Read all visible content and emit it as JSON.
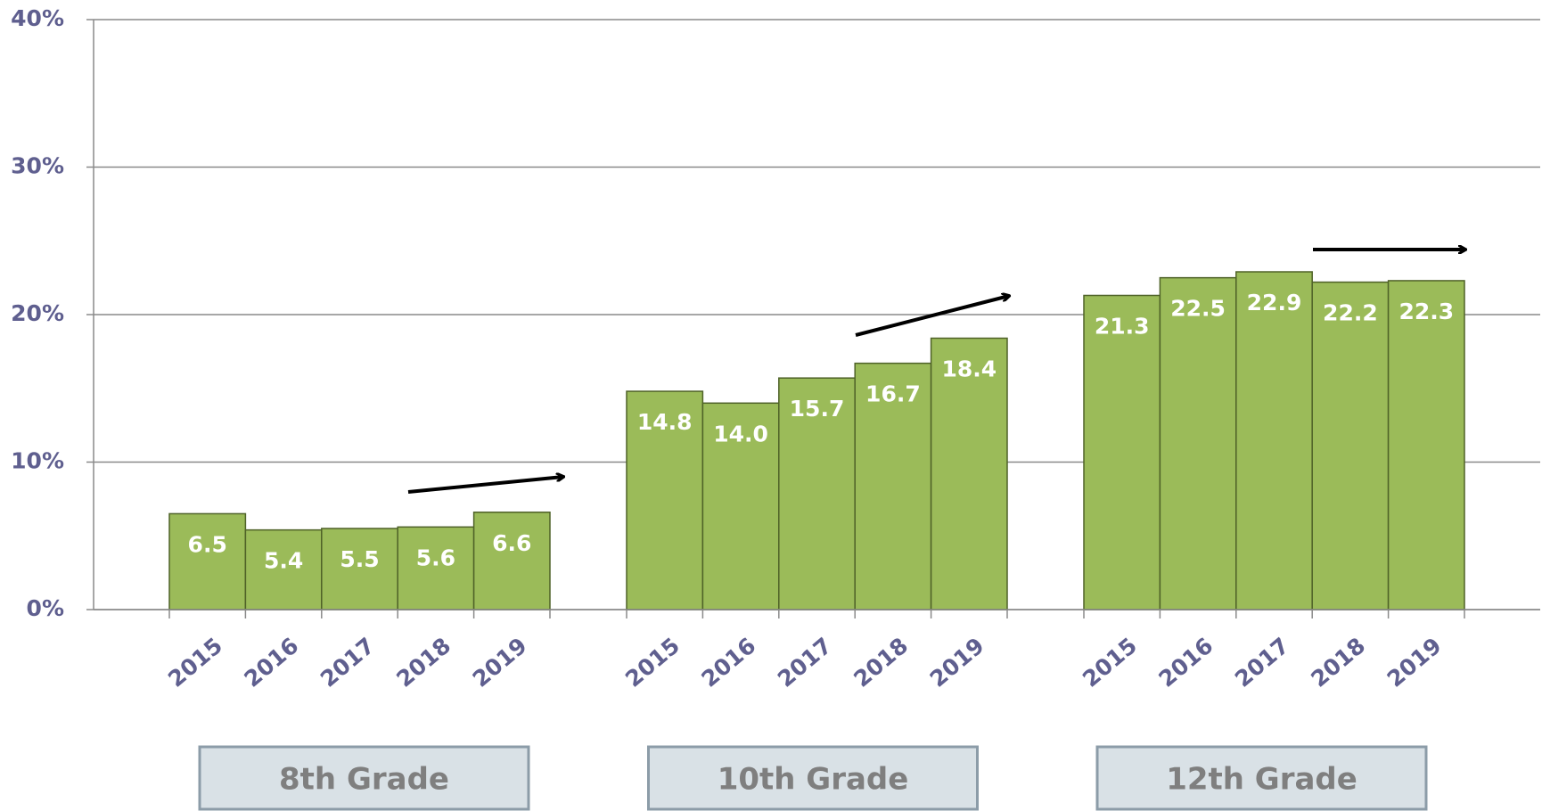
{
  "chart_data": {
    "type": "bar",
    "groups": [
      {
        "name": "8th Grade",
        "categories": [
          "2015",
          "2016",
          "2017",
          "2018",
          "2019"
        ],
        "values": [
          6.5,
          5.4,
          5.5,
          5.6,
          6.6
        ],
        "value_labels": [
          "6.5",
          "5.4",
          "5.5",
          "5.6",
          "6.6"
        ]
      },
      {
        "name": "10th Grade",
        "categories": [
          "2015",
          "2016",
          "2017",
          "2018",
          "2019"
        ],
        "values": [
          14.8,
          14.0,
          15.7,
          16.7,
          18.4
        ],
        "value_labels": [
          "14.8",
          "14.0",
          "15.7",
          "16.7",
          "18.4"
        ]
      },
      {
        "name": "12th Grade",
        "categories": [
          "2015",
          "2016",
          "2017",
          "2018",
          "2019"
        ],
        "values": [
          21.3,
          22.5,
          22.9,
          22.2,
          22.3
        ],
        "value_labels": [
          "21.3",
          "22.5",
          "22.9",
          "22.2",
          "22.3"
        ]
      }
    ],
    "color": "#9bbb59",
    "ylim": [
      0,
      40
    ],
    "yticks": [
      {
        "value": 0,
        "label": "0%"
      },
      {
        "value": 10,
        "label": "10%"
      },
      {
        "value": 20,
        "label": "20%"
      },
      {
        "value": 30,
        "label": "30%"
      },
      {
        "value": 40,
        "label": "40%"
      }
    ],
    "grid": true
  }
}
